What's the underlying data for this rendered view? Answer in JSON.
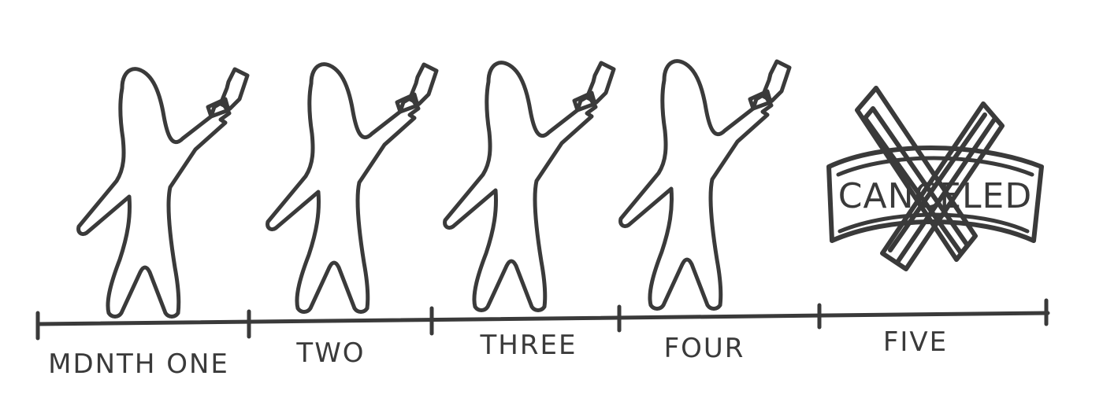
{
  "months": [
    {
      "label": "MDNTH ONE",
      "status": "paying"
    },
    {
      "label": "TWO",
      "status": "paying"
    },
    {
      "label": "THREE",
      "status": "paying"
    },
    {
      "label": "FOUR",
      "status": "paying"
    },
    {
      "label": "FIVE",
      "status": "canceled"
    }
  ],
  "canceled_stamp": {
    "text": "CANCELED"
  },
  "colors": {
    "ink": "#3a3a3a",
    "background": "#ffffff"
  }
}
